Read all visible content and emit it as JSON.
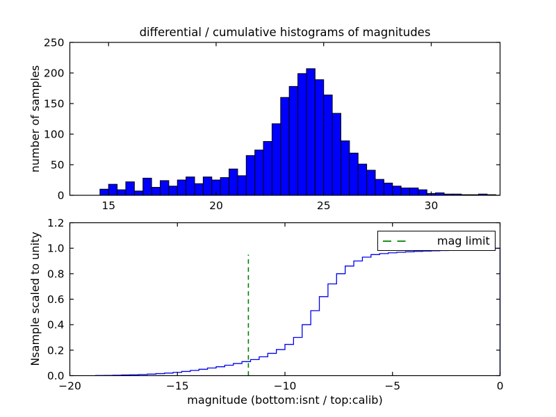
{
  "figure": {
    "background": "#ffffff",
    "text_color": "#000000"
  },
  "chart_data": [
    {
      "type": "bar",
      "name": "differential-histogram",
      "subplot": "top",
      "title": "differential / cumulative histograms of magnitudes",
      "xlabel": "",
      "ylabel": "number of samples",
      "xlim": [
        13.2,
        33.2
      ],
      "ylim": [
        0,
        250
      ],
      "grid": false,
      "xticks": [
        15,
        20,
        25,
        30
      ],
      "xtick_labels": [
        "15",
        "20",
        "25",
        "30"
      ],
      "yticks": [
        0,
        50,
        100,
        150,
        200,
        250
      ],
      "ytick_labels": [
        "0",
        "50",
        "100",
        "150",
        "200",
        "250"
      ],
      "bar_color": "#0000ff",
      "bar_edge_color": "#000000",
      "bin_start": 14.6,
      "bin_width": 0.4,
      "counts": [
        10,
        18,
        9,
        22,
        7,
        28,
        13,
        24,
        15,
        25,
        30,
        19,
        30,
        25,
        29,
        43,
        32,
        65,
        74,
        88,
        117,
        160,
        178,
        199,
        207,
        189,
        164,
        134,
        89,
        69,
        51,
        41,
        26,
        20,
        15,
        12,
        12,
        9,
        3,
        4,
        2,
        2,
        1,
        1,
        2,
        1
      ]
    },
    {
      "type": "line",
      "name": "cumulative-histogram",
      "subplot": "bottom",
      "style": "cumulative-step",
      "title": "",
      "xlabel": "magnitude (bottom:isnt / top:calib)",
      "ylabel": "Nsample scaled to unity",
      "xlim": [
        -20,
        0
      ],
      "ylim": [
        0,
        1.2
      ],
      "grid": false,
      "xticks": [
        -20,
        -15,
        -10,
        -5,
        0
      ],
      "xtick_labels": [
        "−20",
        "−15",
        "−10",
        "−5",
        "0"
      ],
      "yticks": [
        0,
        0.2,
        0.4,
        0.6,
        0.8,
        1.0,
        1.2
      ],
      "ytick_labels": [
        "0.0",
        "0.2",
        "0.4",
        "0.6",
        "0.8",
        "1.0",
        "1.2"
      ],
      "line_color": "#0000ee",
      "step_start": -18.8,
      "step_width": 0.4,
      "cumulative": [
        0.001,
        0.002,
        0.003,
        0.005,
        0.007,
        0.009,
        0.012,
        0.016,
        0.02,
        0.026,
        0.033,
        0.041,
        0.05,
        0.06,
        0.07,
        0.082,
        0.095,
        0.11,
        0.126,
        0.148,
        0.175,
        0.205,
        0.245,
        0.3,
        0.4,
        0.51,
        0.62,
        0.72,
        0.8,
        0.86,
        0.9,
        0.93,
        0.95,
        0.958,
        0.964,
        0.968,
        0.972,
        0.975,
        0.978,
        0.98,
        0.982,
        0.984,
        0.986,
        0.988,
        0.991,
        0.994,
        1.0
      ],
      "mag_limit": {
        "x": -11.7,
        "y_bottom": 0,
        "y_top": 0.95,
        "color": "#008000",
        "label": "mag limit"
      },
      "legend": {
        "label": "mag limit",
        "position": "upper right",
        "line_color": "#008000"
      }
    }
  ]
}
